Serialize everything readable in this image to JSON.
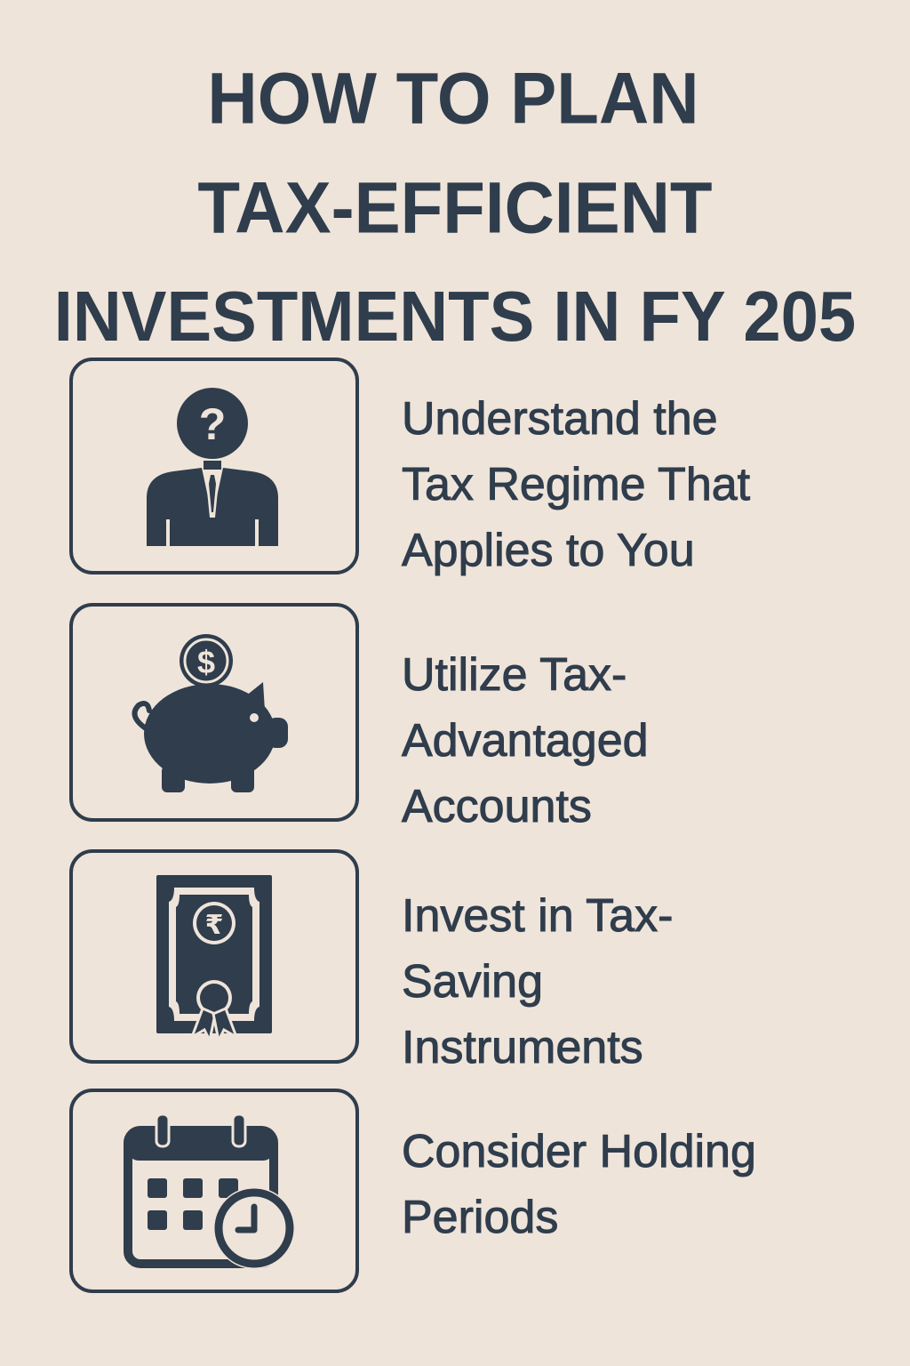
{
  "title": {
    "line1": "HOW TO PLAN",
    "line2": "TAX-EFFICIENT",
    "line3": "INVESTMENTS IN FY 205"
  },
  "colors": {
    "background": "#efe4da",
    "ink": "#2f3d4c"
  },
  "steps": [
    {
      "icon": "person-question-icon",
      "text": "Understand the\nTax Regime That\nApplies to You"
    },
    {
      "icon": "piggy-bank-dollar-icon",
      "text": "Utilize Tax-\nAdvantaged\nAccounts"
    },
    {
      "icon": "rupee-certificate-icon",
      "text": "Invest in Tax-\nSaving\nInstruments"
    },
    {
      "icon": "calendar-clock-icon",
      "text": "Consider Holding\nPeriods"
    }
  ]
}
